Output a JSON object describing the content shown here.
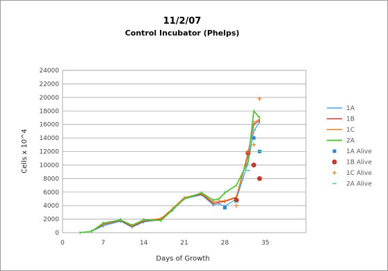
{
  "chart_data": {
    "type": "line",
    "title": "11/2/07",
    "subtitle": "Control Incubator (Phelps)",
    "xlabel": "Days of Growth",
    "ylabel": "Cells x 10^4",
    "xlim": [
      0,
      42
    ],
    "ylim": [
      0,
      24000
    ],
    "xticks": [
      0,
      7,
      14,
      21,
      28,
      35
    ],
    "yticks": [
      0,
      2000,
      4000,
      6000,
      8000,
      10000,
      12000,
      14000,
      16000,
      18000,
      20000,
      22000,
      24000
    ],
    "grid": true,
    "legend_position": "right",
    "series": [
      {
        "name": "1A",
        "kind": "line",
        "color": "#4aa3df",
        "x": [
          3,
          5,
          7,
          10,
          12,
          14,
          17,
          19,
          21,
          24,
          26,
          27,
          28,
          30,
          32,
          33,
          34
        ],
        "y": [
          0,
          200,
          1000,
          1700,
          800,
          1600,
          1900,
          3300,
          5000,
          5600,
          4100,
          4300,
          3900,
          5000,
          10300,
          15000,
          16400
        ]
      },
      {
        "name": "1B",
        "kind": "line",
        "color": "#c0392b",
        "x": [
          3,
          5,
          7,
          10,
          12,
          14,
          17,
          19,
          21,
          24,
          26,
          27,
          28,
          30,
          32,
          33,
          34
        ],
        "y": [
          0,
          200,
          1200,
          1800,
          900,
          1700,
          2000,
          3500,
          5100,
          5700,
          4300,
          4500,
          4600,
          5200,
          11500,
          16000,
          16600
        ]
      },
      {
        "name": "1C",
        "kind": "line",
        "color": "#e67e22",
        "x": [
          3,
          5,
          7,
          10,
          12,
          14,
          17,
          19,
          21,
          24,
          26,
          27,
          28,
          30,
          32,
          33,
          34
        ],
        "y": [
          0,
          200,
          1300,
          1900,
          1000,
          1800,
          2100,
          3600,
          5200,
          5800,
          4500,
          4700,
          4700,
          5300,
          11800,
          16300,
          16800
        ]
      },
      {
        "name": "2A",
        "kind": "line",
        "color": "#55c23d",
        "x": [
          3,
          5,
          7,
          10,
          12,
          14,
          17,
          19,
          21,
          24,
          26,
          27,
          28,
          30,
          32,
          33,
          34
        ],
        "y": [
          0,
          200,
          1400,
          1900,
          1100,
          1900,
          1800,
          3400,
          5000,
          5900,
          4800,
          5000,
          5900,
          7000,
          10500,
          18000,
          17000
        ]
      },
      {
        "name": "1A Alive",
        "kind": "marker",
        "marker": "square",
        "color": "#2e86c1",
        "x": [
          28,
          33,
          34
        ],
        "y": [
          3700,
          14000,
          12000
        ]
      },
      {
        "name": "1B Alive",
        "kind": "marker",
        "marker": "circle",
        "color": "#c0392b",
        "x": [
          30,
          32,
          33,
          34
        ],
        "y": [
          4800,
          11800,
          10000,
          8000
        ]
      },
      {
        "name": "1C Alive",
        "kind": "marker",
        "marker": "plus",
        "color": "#e67e22",
        "x": [
          30,
          32,
          33,
          34
        ],
        "y": [
          4000,
          11900,
          13000,
          19800
        ]
      },
      {
        "name": "2A Alive",
        "kind": "marker",
        "marker": "dash",
        "color": "#48c9b0",
        "x": [
          30,
          32,
          33,
          34
        ],
        "y": [
          4500,
          9200,
          15200,
          12000
        ]
      }
    ]
  }
}
